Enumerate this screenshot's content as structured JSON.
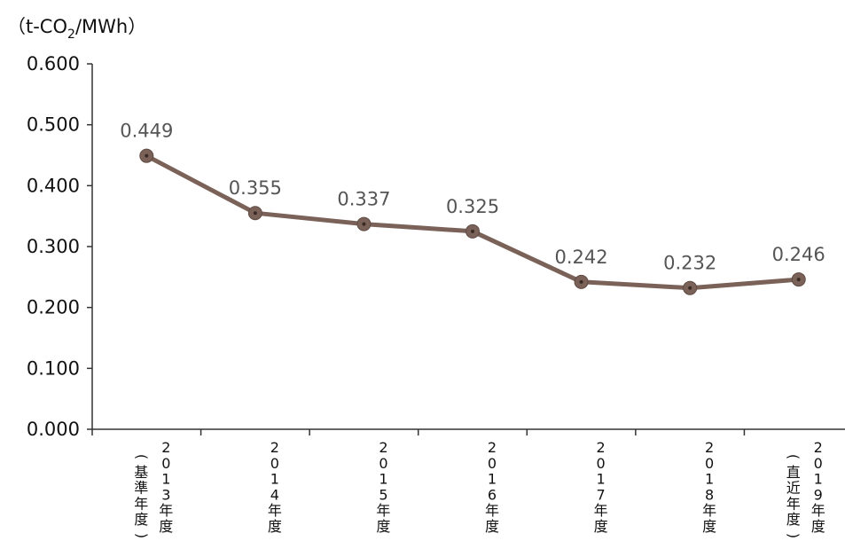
{
  "chart_data": {
    "type": "line",
    "unit_label": "（t-CO2/MWh）",
    "unit_parts": {
      "prefix": "（t-CO",
      "subscript": "2",
      "suffix": "/MWh）"
    },
    "y_ticks": [
      "0.600",
      "0.500",
      "0.400",
      "0.300",
      "0.200",
      "0.100",
      "0.000"
    ],
    "ylim": [
      0,
      0.6
    ],
    "grid": false,
    "categories": [
      {
        "label": "2013年度（基準年度）",
        "main": "2013年度",
        "sub": "（基準年度）"
      },
      {
        "label": "2014年度",
        "main": "2014年度",
        "sub": ""
      },
      {
        "label": "2015年度",
        "main": "2015年度",
        "sub": ""
      },
      {
        "label": "2016年度",
        "main": "2016年度",
        "sub": ""
      },
      {
        "label": "2017年度",
        "main": "2017年度",
        "sub": ""
      },
      {
        "label": "2018年度",
        "main": "2018年度",
        "sub": ""
      },
      {
        "label": "2019年度（直近年度）",
        "main": "2019年度",
        "sub": "（直近年度）"
      }
    ],
    "values": [
      0.449,
      0.355,
      0.337,
      0.325,
      0.242,
      0.232,
      0.246
    ],
    "data_labels": [
      "0.449",
      "0.355",
      "0.337",
      "0.325",
      "0.242",
      "0.232",
      "0.246"
    ],
    "colors": {
      "line": "#7a6259",
      "marker": "#7a6259",
      "marker_center": "#3a2a24",
      "axis": "#333333"
    }
  }
}
